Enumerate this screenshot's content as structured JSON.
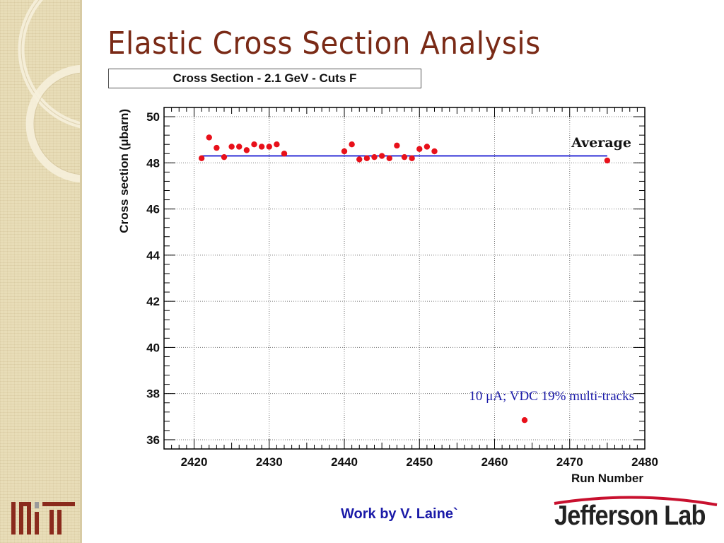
{
  "slide": {
    "title": "Elastic Cross Section Analysis",
    "credit": "Work by V. Laine`"
  },
  "logos": {
    "left": "mit-logo",
    "right_text": "Jefferson Lab"
  },
  "colors": {
    "title": "#7a2a16",
    "points": "#e8101a",
    "average_line": "#1010d0",
    "annotation": "#1a1aa8"
  },
  "chart_data": {
    "type": "scatter",
    "title": "Cross Section - 2.1 GeV - Cuts F",
    "xlabel": "Run Number",
    "ylabel": "Cross section (μbarn)",
    "xlim": [
      2416,
      2480
    ],
    "ylim": [
      35.6,
      50.4
    ],
    "xticks": [
      2420,
      2430,
      2440,
      2450,
      2460,
      2470,
      2480
    ],
    "yticks": [
      36,
      38,
      40,
      42,
      44,
      46,
      48,
      50
    ],
    "grid": true,
    "x": [
      2421,
      2422,
      2423,
      2424,
      2425,
      2426,
      2427,
      2428,
      2429,
      2430,
      2431,
      2432,
      2440,
      2441,
      2442,
      2443,
      2444,
      2445,
      2446,
      2447,
      2448,
      2449,
      2450,
      2451,
      2452,
      2464,
      2475
    ],
    "y": [
      48.2,
      49.1,
      48.65,
      48.25,
      48.7,
      48.7,
      48.55,
      48.8,
      48.7,
      48.7,
      48.8,
      48.4,
      48.5,
      48.8,
      48.15,
      48.2,
      48.25,
      48.3,
      48.2,
      48.75,
      48.25,
      48.2,
      48.6,
      48.7,
      48.5,
      36.85,
      48.1
    ],
    "average": {
      "label": "Average",
      "value": 48.3,
      "x_range": [
        2421,
        2475
      ]
    },
    "annotation": "10 μA; VDC 19% multi-tracks"
  }
}
